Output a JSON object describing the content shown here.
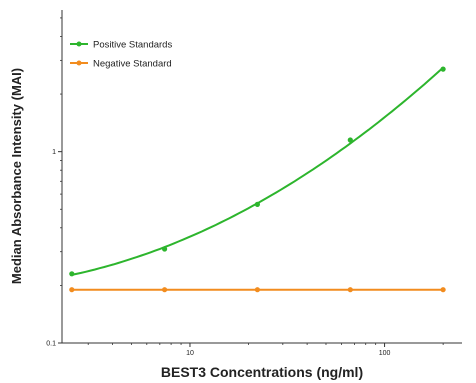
{
  "chart_data": {
    "type": "line",
    "title": "",
    "xlabel": "BEST3 Concentrations (ng/ml)",
    "ylabel": "Median Absorbance Intensity (MAI)",
    "x_scale": "log",
    "y_scale": "log",
    "xlim": [
      2.2,
      250
    ],
    "ylim": [
      0.1,
      5.5
    ],
    "x_ticks": [
      10,
      100
    ],
    "x_tick_labels": [
      "10",
      "100"
    ],
    "y_ticks": [
      0.1,
      1
    ],
    "y_tick_labels": [
      "0.1",
      "1"
    ],
    "grid": false,
    "legend_position": "top-left",
    "series": [
      {
        "name": "Positive Standards",
        "color": "#2db52d",
        "x": [
          2.47,
          7.41,
          22.2,
          66.7,
          200
        ],
        "y": [
          0.23,
          0.31,
          0.53,
          1.15,
          2.7
        ]
      },
      {
        "name": "Negative Standard",
        "color": "#f28c1e",
        "x": [
          2.47,
          7.41,
          22.2,
          66.7,
          200
        ],
        "y": [
          0.19,
          0.19,
          0.19,
          0.19,
          0.19
        ]
      }
    ]
  }
}
